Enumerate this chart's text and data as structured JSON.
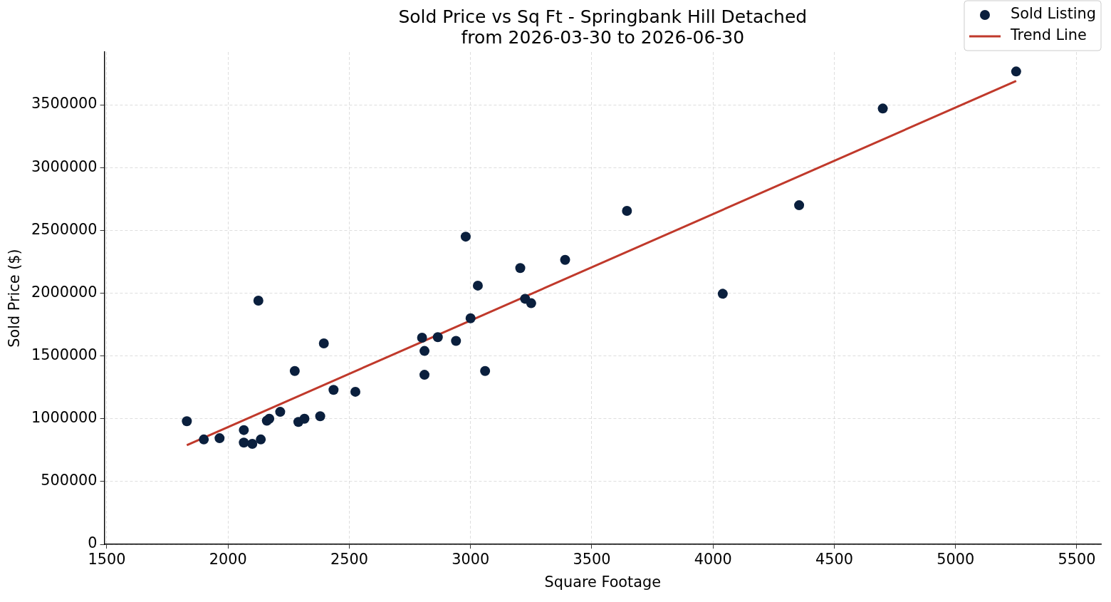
{
  "chart_data": {
    "type": "scatter",
    "title": "Sold Price vs Sq Ft - Springbank Hill Detached\nfrom 2026-03-30 to 2026-06-30",
    "xlabel": "Square Footage",
    "ylabel": "Sold Price ($)",
    "xlim": [
      1490,
      5600
    ],
    "ylim": [
      0,
      3920000
    ],
    "xticks": [
      1500,
      2000,
      2500,
      3000,
      3500,
      4000,
      4500,
      5000,
      5500
    ],
    "yticks": [
      0,
      500000,
      1000000,
      1500000,
      2000000,
      2500000,
      3000000,
      3500000
    ],
    "grid": true,
    "legend": "top right",
    "series": [
      {
        "name": "Sold Listing",
        "marker": "circle",
        "color": "#0a1f3d",
        "x": [
          1830,
          1900,
          1965,
          2065,
          2065,
          2100,
          2135,
          2125,
          2160,
          2170,
          2215,
          2275,
          2290,
          2315,
          2380,
          2395,
          2435,
          2525,
          2800,
          2865,
          2810,
          2810,
          2940,
          2980,
          3000,
          3030,
          3060,
          3205,
          3225,
          3250,
          3390,
          3645,
          4040,
          4355,
          4700,
          5250
        ],
        "values": [
          980000,
          835000,
          845000,
          910000,
          810000,
          800000,
          835000,
          1940000,
          985000,
          1000000,
          1055000,
          1380000,
          975000,
          1000000,
          1020000,
          1600000,
          1230000,
          1215000,
          1645000,
          1650000,
          1540000,
          1350000,
          1620000,
          2450000,
          1800000,
          2060000,
          1380000,
          2200000,
          1955000,
          1920000,
          2265000,
          2655000,
          1995000,
          2700000,
          3470000,
          3765000
        ]
      },
      {
        "name": "Trend Line",
        "type": "line",
        "marker": "none",
        "line_style": "solid",
        "color": "#c0392b",
        "x": [
          1830,
          5250
        ],
        "values": [
          790000,
          3690000
        ]
      }
    ]
  }
}
